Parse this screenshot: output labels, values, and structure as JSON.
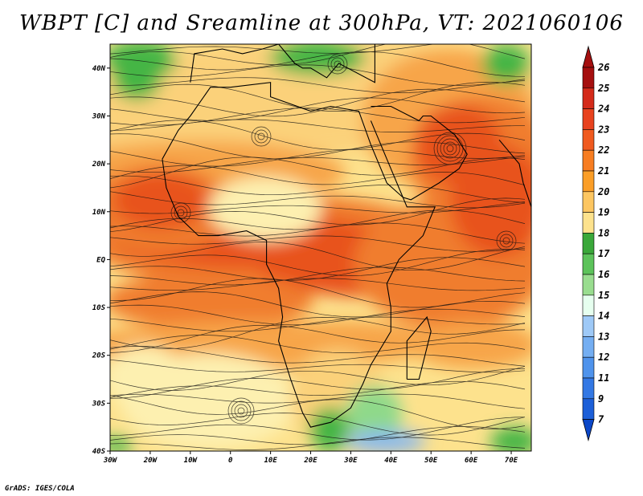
{
  "title": "WBPT [C] and Sreamline at 300hPa, VT: 2021060106",
  "footer": "GrADS: IGES/COLA",
  "map": {
    "lat_labels": [
      "40N",
      "30N",
      "20N",
      "10N",
      "EQ",
      "10S",
      "20S",
      "30S",
      "40S"
    ],
    "lon_labels": [
      "30W",
      "20W",
      "10W",
      "0",
      "10E",
      "20E",
      "30E",
      "40E",
      "50E",
      "60E",
      "70E"
    ],
    "lat_range": [
      -40,
      45
    ],
    "lon_range": [
      -30,
      75
    ]
  },
  "colorbar": {
    "levels": [
      "26",
      "25",
      "24",
      "23",
      "22",
      "21",
      "20",
      "19",
      "18",
      "17",
      "16",
      "15",
      "14",
      "13",
      "12",
      "11",
      "9",
      "7"
    ],
    "colors": [
      "#a50f0f",
      "#d42a1a",
      "#e8421e",
      "#f05a1f",
      "#f77d21",
      "#fb9e27",
      "#fdc661",
      "#fde28d",
      "#3aa83a",
      "#5cc35a",
      "#99dd8f",
      "#e6ffef",
      "#9ec9f7",
      "#74aef2",
      "#4f93ec",
      "#3378e4",
      "#1c5fd8",
      "#0b47c8"
    ]
  },
  "fields": {
    "palette": {
      "bg": "#fde28d",
      "pale": "#fdf0b0",
      "tan": "#fbd17a",
      "orange": "#f7a54a",
      "deep_orange": "#f07d2d",
      "red_orange": "#e8521e",
      "green": "#45b545",
      "light_green": "#8fd98a",
      "blue": "#8ab8ee"
    }
  }
}
